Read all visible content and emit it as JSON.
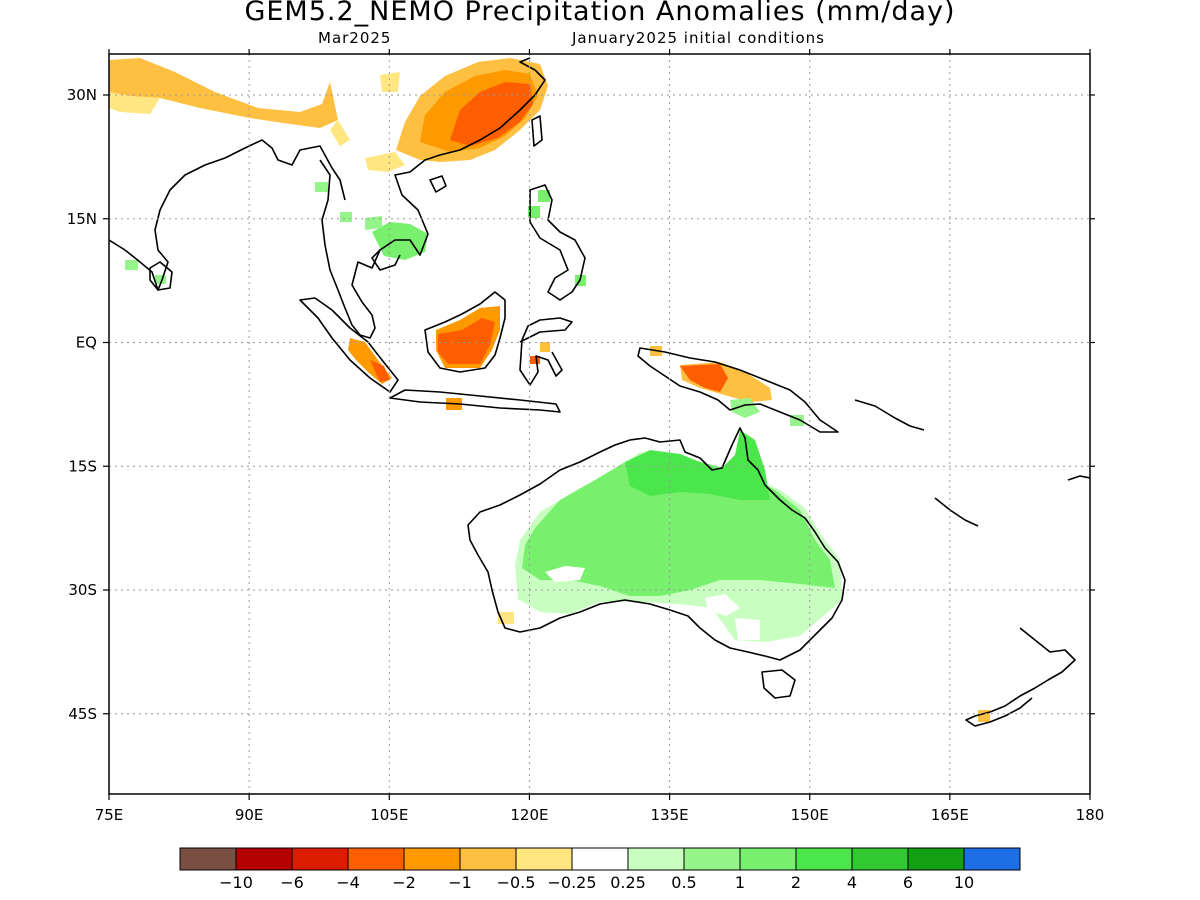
{
  "title": "GEM5.2_NEMO Precipitation Anomalies (mm/day)",
  "subtitle_left": "Mar2025",
  "subtitle_right": "January2025 initial conditions",
  "lon_ticks": [
    {
      "lon": 75,
      "label": "75E"
    },
    {
      "lon": 90,
      "label": "90E"
    },
    {
      "lon": 105,
      "label": "105E"
    },
    {
      "lon": 120,
      "label": "120E"
    },
    {
      "lon": 135,
      "label": "135E"
    },
    {
      "lon": 150,
      "label": "150E"
    },
    {
      "lon": 165,
      "label": "165E"
    },
    {
      "lon": 180,
      "label": "180"
    }
  ],
  "lat_ticks": [
    {
      "lat": 30,
      "label": "30N"
    },
    {
      "lat": 15,
      "label": "15N"
    },
    {
      "lat": 0,
      "label": "EQ"
    },
    {
      "lat": -15,
      "label": "15S"
    },
    {
      "lat": -30,
      "label": "30S"
    },
    {
      "lat": -45,
      "label": "45S"
    }
  ],
  "colorbar": {
    "colors": [
      "#7a4f43",
      "#b40000",
      "#dc1c00",
      "#ff5e00",
      "#ff9900",
      "#ffbf40",
      "#ffe680",
      "#ffffff",
      "#c8ffc0",
      "#96f58a",
      "#78f06e",
      "#4be64b",
      "#32c832",
      "#14a014",
      "#1e6ee6"
    ],
    "labels": [
      "−10",
      "−6",
      "−4",
      "−2",
      "−1",
      "−0.5",
      "−0.25",
      "0.25",
      "0.5",
      "1",
      "2",
      "4",
      "6",
      "10"
    ]
  },
  "anomaly_regions": [
    {
      "name": "south-china",
      "value": -2,
      "color": "#ff5e00"
    },
    {
      "name": "south-china-edge",
      "value": -1,
      "color": "#ff9900"
    },
    {
      "name": "himalaya-band",
      "value": -0.5,
      "color": "#ffbf40"
    },
    {
      "name": "borneo",
      "value": -2,
      "color": "#ff5e00"
    },
    {
      "name": "sumatra",
      "value": -1,
      "color": "#ff9900"
    },
    {
      "name": "new-guinea",
      "value": -2,
      "color": "#ff5e00"
    },
    {
      "name": "indochina",
      "value": 1,
      "color": "#78f06e"
    },
    {
      "name": "australia-north",
      "value": 2,
      "color": "#4be64b"
    },
    {
      "name": "australia-central",
      "value": 1,
      "color": "#78f06e"
    },
    {
      "name": "australia-south",
      "value": 0.25,
      "color": "#c8ffc0"
    }
  ]
}
